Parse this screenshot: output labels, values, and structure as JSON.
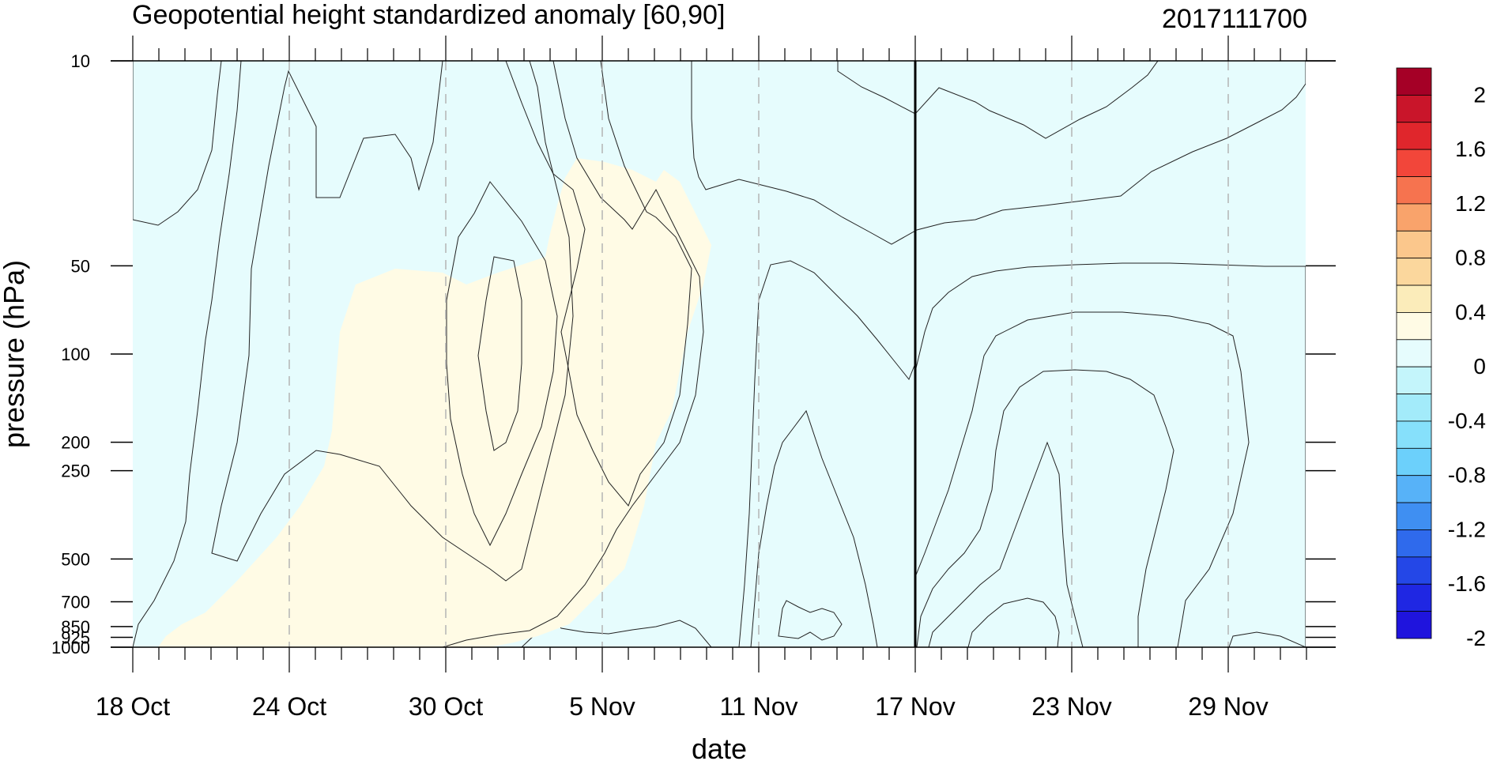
{
  "chart_data": {
    "type": "heatmap",
    "title": "Geopotential height standardized anomaly [60,90]",
    "datestamp": "2017111700",
    "xlabel": "date",
    "ylabel": "pressure (hPa)",
    "x_ticks": [
      "18 Oct",
      "24 Oct",
      "30 Oct",
      "5 Nov",
      "11 Nov",
      "17 Nov",
      "23 Nov",
      "29 Nov"
    ],
    "y_ticks": [
      "10",
      "50",
      "100",
      "200",
      "250",
      "500",
      "700",
      "850",
      "925",
      "1000"
    ],
    "ylim": [
      1000,
      10
    ],
    "yscale": "log",
    "reference_date": "17 Nov",
    "colorbar": {
      "labels": [
        "2",
        "1.6",
        "1.2",
        "0.8",
        "0.4",
        "0",
        "-0.4",
        "-0.8",
        "-1.2",
        "-1.6",
        "-2"
      ],
      "colors": [
        "#a50026",
        "#c9152a",
        "#e0262c",
        "#f2463a",
        "#f6734f",
        "#f9a36b",
        "#fbc78c",
        "#fbd79d",
        "#fbecba",
        "#fffbe5",
        "#e6fcfd",
        "#c4f5fb",
        "#a3ebfa",
        "#86e0fb",
        "#6cd0fb",
        "#57b2f8",
        "#3f8ff2",
        "#2f6aec",
        "#2447e7",
        "#1f27e3",
        "#1f14dd"
      ]
    },
    "series": [
      {
        "name": "",
        "values": []
      }
    ],
    "levels": [
      -2,
      -1.8,
      -1.6,
      -1.4,
      -1.2,
      -1,
      -0.8,
      -0.6,
      -0.4,
      -0.2,
      0,
      0.2,
      0.4,
      0.6,
      0.8,
      1,
      1.2,
      1.4,
      1.6,
      1.8,
      2
    ]
  }
}
